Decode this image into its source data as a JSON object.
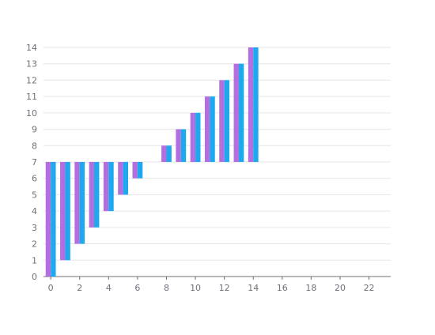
{
  "chart_data": {
    "type": "bar",
    "baseline": 7,
    "x": [
      0,
      1,
      2,
      3,
      4,
      5,
      6,
      7,
      8,
      9,
      10,
      11,
      12,
      13,
      14
    ],
    "series": [
      {
        "values": [
          0,
          1,
          2,
          3,
          4,
          5,
          6,
          7,
          8,
          9,
          10,
          11,
          12,
          13,
          14
        ],
        "color": "#b36fe0"
      },
      {
        "values": [
          0,
          1,
          2,
          3,
          4,
          5,
          6,
          7,
          8,
          9,
          10,
          11,
          12,
          13,
          14
        ],
        "color": "#1ea9ee"
      }
    ],
    "xlim": [
      -0.5,
      23.5
    ],
    "ylim": [
      0,
      14
    ],
    "xticks": [
      "0",
      "2",
      "4",
      "6",
      "8",
      "10",
      "12",
      "14",
      "16",
      "18",
      "20",
      "22"
    ],
    "yticks": [
      "0",
      "1",
      "2",
      "3",
      "4",
      "5",
      "6",
      "7",
      "8",
      "9",
      "10",
      "11",
      "12",
      "13",
      "14"
    ],
    "grid": true,
    "grid_color": "#e6e6e6",
    "axis_color": "#6e7079"
  }
}
